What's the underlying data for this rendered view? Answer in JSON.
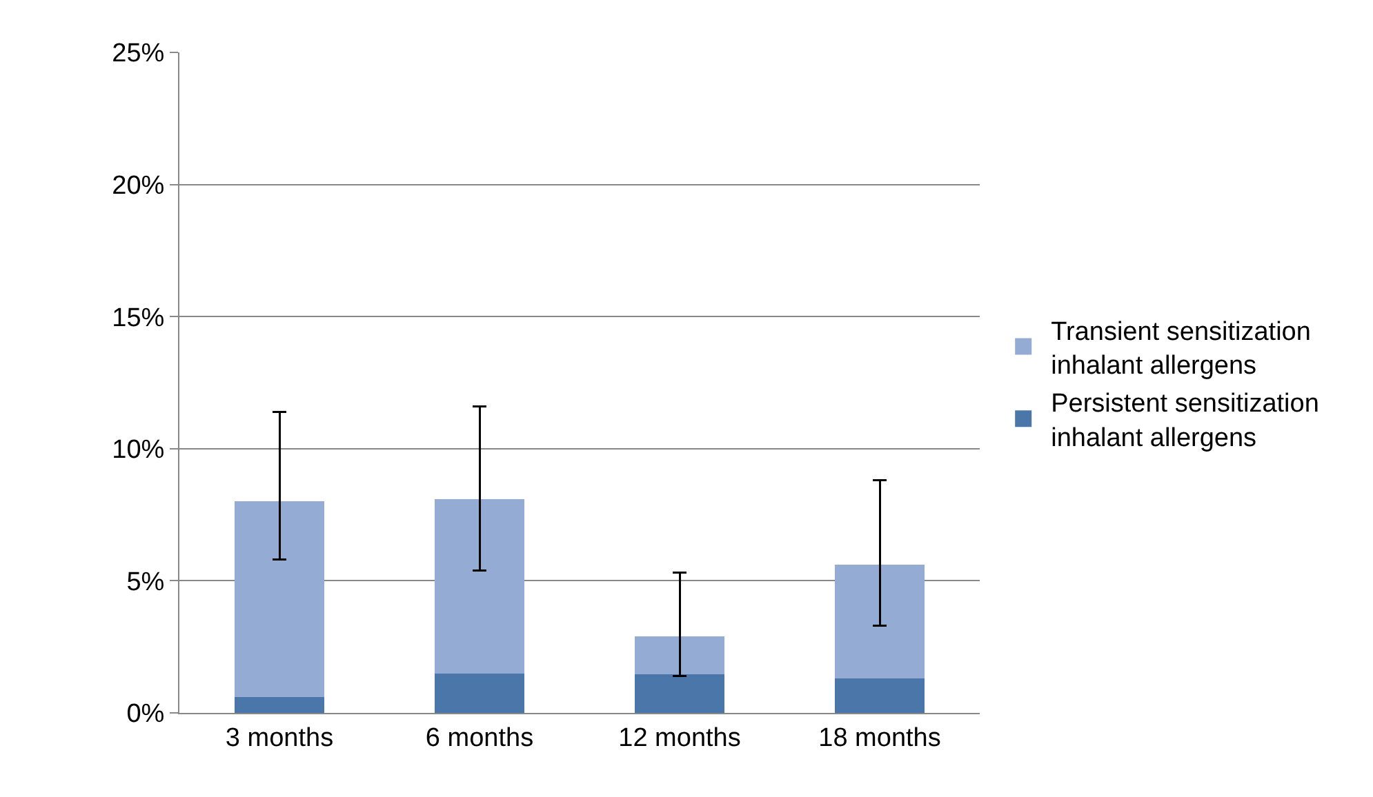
{
  "chart_data": {
    "type": "bar",
    "stacked": true,
    "categories": [
      "3 months",
      "6 months",
      "12 months",
      "18 months"
    ],
    "series": [
      {
        "name": "Persistent sensitization inhalant allergens",
        "color": "#4a76aa",
        "values": [
          0.6,
          1.5,
          1.45,
          1.3
        ]
      },
      {
        "name": "Transient sensitization inhalant allergens",
        "color": "#94abd3",
        "values": [
          7.4,
          6.6,
          1.45,
          4.3
        ],
        "errors": [
          [
            5.8,
            11.4
          ],
          [
            5.4,
            11.6
          ],
          [
            1.4,
            5.3
          ],
          [
            3.3,
            8.8
          ]
        ]
      }
    ],
    "ylim": [
      0,
      25
    ],
    "yticks": [
      {
        "value": 0,
        "label": "0%"
      },
      {
        "value": 5,
        "label": "5%"
      },
      {
        "value": 10,
        "label": "10%"
      },
      {
        "value": 15,
        "label": "15%"
      },
      {
        "value": 20,
        "label": "20%"
      },
      {
        "value": 25,
        "label": "25%"
      }
    ],
    "grid": "y",
    "legend": "right"
  }
}
